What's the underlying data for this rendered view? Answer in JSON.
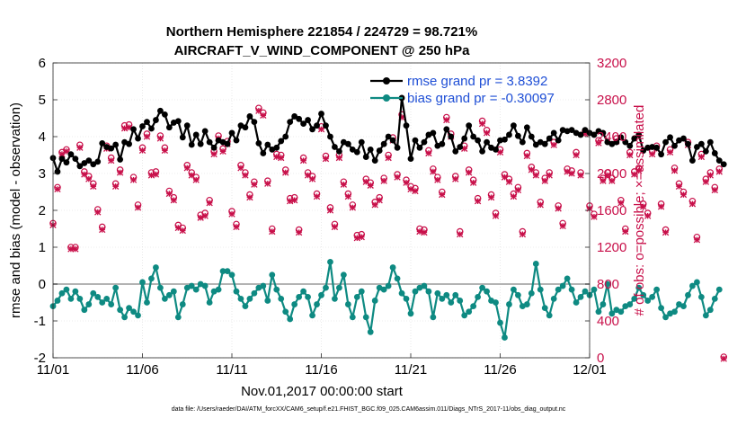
{
  "chart_data": {
    "type": "line",
    "title": "Northern Hemisphere 221854 / 224729 = 98.721%",
    "subtitle": "AIRCRAFT_V_WIND_COMPONENT @ 250 hPa",
    "xlabel": "Nov.01,2017 00:00:00 start",
    "ylabel": "rmse and bias (model - observation)",
    "y2label": "# of obs: o=possible; ×=assimilated",
    "footer": "data file: /Users/raeder/DAI/ATM_forcXX/CAM6_setup/f.e21.FHIST_BGC.f09_025.CAM6assim.011/Diags_NTrS_2017-11/obs_diag_output.nc",
    "x_ticks": [
      {
        "day": 0,
        "label": "11/01"
      },
      {
        "day": 5,
        "label": "11/06"
      },
      {
        "day": 10,
        "label": "11/11"
      },
      {
        "day": 15,
        "label": "11/16"
      },
      {
        "day": 20,
        "label": "11/21"
      },
      {
        "day": 25,
        "label": "11/26"
      },
      {
        "day": 30,
        "label": "12/01"
      }
    ],
    "xlim": [
      0,
      30
    ],
    "ylim": [
      -2,
      6
    ],
    "y_ticks": [
      "-2",
      "-1",
      "0",
      "1",
      "2",
      "3",
      "4",
      "5",
      "6"
    ],
    "y2lim": [
      0,
      3200
    ],
    "y2_ticks": [
      "0",
      "400",
      "800",
      "1200",
      "1600",
      "2000",
      "2400",
      "2800",
      "3200"
    ],
    "step_days": 0.25,
    "colors": {
      "rmse": "#000000",
      "bias": "#0e8a82",
      "obs": "#c8104a",
      "zero_line": "#b3b3b3",
      "legend_text": "#1f4fd6"
    },
    "series": [
      {
        "name": "rmse grand pr = 3.8392",
        "values": [
          3.42,
          3.05,
          3.4,
          3.3,
          3.52,
          3.4,
          3.2,
          3.28,
          3.35,
          3.25,
          3.32,
          3.82,
          3.72,
          3.68,
          3.78,
          3.38,
          3.85,
          3.8,
          4.2,
          3.95,
          4.28,
          4.4,
          4.22,
          4.45,
          4.7,
          4.6,
          4.25,
          4.38,
          4.42,
          3.98,
          4.3,
          3.78,
          4.05,
          3.8,
          4.15,
          3.85,
          3.7,
          3.9,
          3.85,
          3.8,
          4.1,
          3.9,
          4.3,
          4.25,
          4.55,
          4.4,
          3.82,
          3.55,
          3.78,
          3.65,
          3.7,
          3.88,
          4.0,
          4.4,
          4.55,
          4.48,
          4.35,
          4.45,
          4.2,
          4.3,
          4.62,
          4.3,
          4.0,
          3.72,
          3.6,
          3.85,
          3.8,
          3.65,
          3.58,
          3.85,
          3.45,
          3.65,
          3.35,
          3.62,
          3.8,
          4.0,
          3.9,
          3.7,
          5.05,
          4.3,
          3.4,
          3.9,
          3.7,
          3.85,
          4.05,
          4.1,
          3.75,
          3.8,
          4.2,
          4.0,
          3.6,
          3.72,
          3.95,
          4.3,
          4.0,
          3.9,
          3.6,
          3.85,
          3.7,
          3.65,
          3.9,
          3.92,
          4.05,
          4.3,
          4.02,
          3.85,
          4.25,
          4.0,
          3.78,
          3.85,
          3.8,
          3.95,
          4.1,
          3.9,
          4.18,
          4.15,
          4.18,
          4.1,
          4.05,
          4.18,
          4.1,
          4.05,
          4.15,
          4.1,
          3.85,
          3.8,
          3.85,
          3.98,
          3.85,
          3.75,
          3.95,
          4.05,
          3.62,
          3.7,
          3.72,
          3.7,
          3.52,
          3.85,
          3.98,
          3.75,
          3.9,
          3.95,
          3.8,
          3.35,
          3.72,
          3.8,
          3.6,
          3.85,
          3.55,
          3.35,
          3.25
        ]
      },
      {
        "name": "bias grand pr = -0.30097",
        "values": [
          -0.6,
          -0.45,
          -0.25,
          -0.15,
          -0.4,
          -0.2,
          -0.4,
          -0.7,
          -0.55,
          -0.25,
          -0.35,
          -0.5,
          -0.4,
          -0.55,
          -0.1,
          -0.7,
          -0.9,
          -0.65,
          -0.75,
          -0.85,
          0.05,
          -0.5,
          0.15,
          0.45,
          -0.1,
          -0.4,
          -0.3,
          -0.2,
          -0.9,
          -0.55,
          -0.1,
          -0.05,
          -0.15,
          0.0,
          -0.05,
          -0.5,
          -0.2,
          -0.15,
          0.35,
          0.35,
          0.25,
          -0.2,
          -0.4,
          -0.6,
          -0.4,
          -0.25,
          -0.1,
          -0.05,
          -0.45,
          0.25,
          -0.15,
          -0.4,
          -0.75,
          -0.95,
          -0.55,
          -0.35,
          -0.2,
          -0.35,
          -0.85,
          -0.55,
          -0.3,
          -0.1,
          0.6,
          -0.4,
          -0.1,
          0.25,
          -0.55,
          -0.9,
          -0.35,
          -0.2,
          -0.9,
          -1.3,
          -0.45,
          -0.1,
          -0.15,
          -0.05,
          0.45,
          0.15,
          -0.25,
          -0.4,
          -0.8,
          -0.2,
          -0.1,
          -0.05,
          -0.2,
          -0.9,
          -0.25,
          -0.4,
          -0.3,
          -0.5,
          -0.3,
          -0.45,
          -0.85,
          -0.75,
          -0.6,
          -0.35,
          -0.1,
          -0.2,
          -0.45,
          -0.5,
          -1.05,
          -1.45,
          -0.55,
          -0.15,
          -0.3,
          -0.6,
          -0.55,
          -0.25,
          0.55,
          -0.15,
          -0.65,
          -0.85,
          -0.4,
          -0.15,
          -0.05,
          0.15,
          -0.15,
          -0.5,
          -0.35,
          -0.2,
          -0.3,
          -0.15,
          -0.75,
          -0.55,
          0.0,
          -0.8,
          -0.7,
          -0.75,
          -0.6,
          -0.55,
          -0.4,
          -0.1,
          -0.3,
          -0.45,
          -0.35,
          -0.15,
          -0.65,
          -0.9,
          -0.8,
          -0.75,
          -0.55,
          -0.6,
          -0.3,
          -0.05,
          0.05,
          -0.35,
          -0.85,
          -0.7,
          -0.4,
          -0.15
        ]
      },
      {
        "name": "# of obs possible (o)",
        "values": [
          1450,
          1840,
          2220,
          2250,
          1190,
          1190,
          2300,
          2010,
          1960,
          1880,
          1600,
          1410,
          2290,
          2160,
          1880,
          2030,
          2510,
          2520,
          1950,
          1650,
          2270,
          2420,
          2000,
          2010,
          2400,
          2270,
          1800,
          1730,
          1430,
          1400,
          2080,
          2000,
          1950,
          1540,
          1560,
          1700,
          2230,
          2400,
          2260,
          2340,
          1580,
          1440,
          2080,
          2000,
          1760,
          1900,
          2700,
          2650,
          1910,
          1390,
          2200,
          2190,
          2030,
          1720,
          1730,
          1380,
          2160,
          2000,
          1960,
          1770,
          2500,
          2180,
          1620,
          1440,
          2190,
          1900,
          1770,
          1650,
          1320,
          1330,
          1930,
          1890,
          1680,
          1730,
          1940,
          2190,
          2380,
          1980,
          2630,
          1920,
          1850,
          1830,
          1390,
          1380,
          2240,
          2040,
          1950,
          1790,
          2600,
          2420,
          1960,
          1360,
          2290,
          2030,
          1920,
          1720,
          2560,
          2460,
          1760,
          1560,
          2250,
          1980,
          1930,
          1770,
          1840,
          1360,
          2210,
          2060,
          2000,
          1680,
          1940,
          2000,
          2330,
          1640,
          1450,
          2040,
          2020,
          2220,
          2000,
          2450,
          1640,
          1550,
          2350,
          1940,
          2000,
          1940,
          2370,
          1700,
          1390,
          2220,
          2010,
          2050,
          1660,
          1560,
          2230,
          2290,
          1660,
          1380,
          2250,
          2050,
          1880,
          1790,
          2330,
          1690,
          1300,
          2200,
          1930,
          2000,
          1840,
          2040,
          0
        ]
      },
      {
        "name": "# of obs assimilated (×)",
        "values": [
          1450,
          1840,
          2220,
          2250,
          1190,
          1190,
          2290,
          2000,
          1950,
          1870,
          1590,
          1400,
          2280,
          2150,
          1870,
          2020,
          2500,
          2510,
          1940,
          1640,
          2260,
          2410,
          1990,
          2000,
          2390,
          2260,
          1790,
          1720,
          1420,
          1390,
          2070,
          1990,
          1940,
          1530,
          1550,
          1690,
          2220,
          2390,
          2250,
          2330,
          1570,
          1430,
          2070,
          1990,
          1750,
          1890,
          2690,
          2640,
          1900,
          1380,
          2190,
          2180,
          2020,
          1710,
          1720,
          1370,
          2150,
          1990,
          1950,
          1760,
          2490,
          2170,
          1610,
          1430,
          2180,
          1890,
          1760,
          1640,
          1310,
          1320,
          1920,
          1880,
          1670,
          1720,
          1930,
          2180,
          2370,
          1970,
          2620,
          1910,
          1840,
          1820,
          1380,
          1370,
          2230,
          2030,
          1940,
          1780,
          2590,
          2410,
          1950,
          1350,
          2280,
          2020,
          1910,
          1710,
          2550,
          2450,
          1750,
          1550,
          2240,
          1970,
          1920,
          1760,
          1830,
          1350,
          2200,
          2050,
          1990,
          1670,
          1930,
          1990,
          2320,
          1630,
          1440,
          2030,
          2010,
          2210,
          1990,
          2440,
          1630,
          1540,
          2340,
          1930,
          1990,
          1930,
          2360,
          1690,
          1380,
          2210,
          2000,
          2040,
          1650,
          1550,
          2220,
          2280,
          1650,
          1370,
          2240,
          2040,
          1870,
          1780,
          2320,
          1680,
          1290,
          2190,
          1920,
          1990,
          1830,
          2030,
          0
        ]
      }
    ]
  }
}
